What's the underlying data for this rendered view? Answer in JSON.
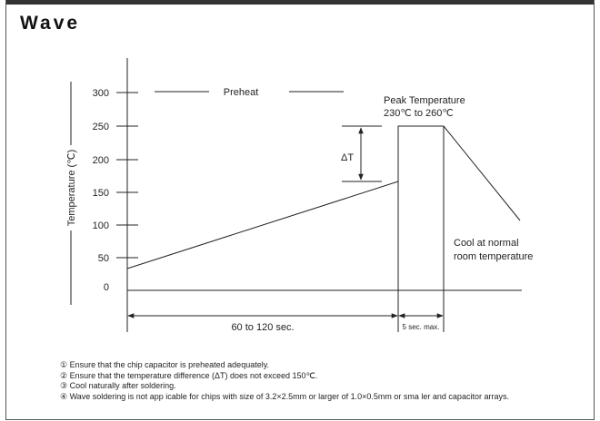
{
  "title": "Wave",
  "diagram": {
    "y_axis_label": "Temperature (℃)",
    "y_ticks": [
      "300",
      "250",
      "200",
      "150",
      "100",
      "50",
      "0"
    ],
    "preheat_label": "Preheat",
    "peak_label_line1": "Peak Temperature",
    "peak_label_line2": "230℃ to 260℃",
    "delta_label": "ΔT",
    "cool_label_line1": "Cool at normal",
    "cool_label_line2": "room temperature",
    "duration_preheat": "60 to 120 sec.",
    "duration_peak": "5 sec. max."
  },
  "notes": [
    "① Ensure that the chip capacitor is preheated adequately.",
    "② Ensure that the temperature difference (ΔT) does not exceed 150℃.",
    "③ Cool naturally after soldering.",
    "④ Wave soldering is not app icable for chips with size of 3.2×2.5mm or larger of 1.0×0.5mm or sma ler and capacitor arrays."
  ]
}
